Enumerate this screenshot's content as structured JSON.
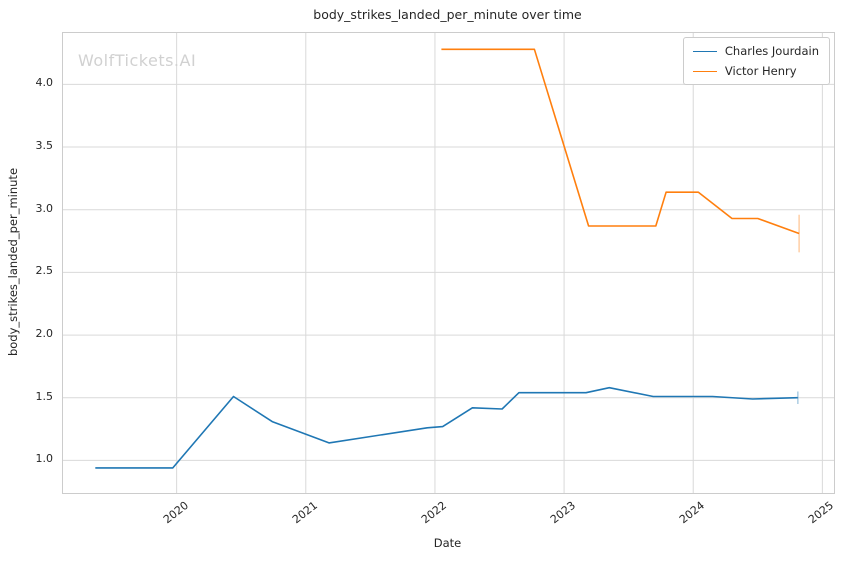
{
  "title": "body_strikes_landed_per_minute over time",
  "watermark": "WolfTickets.AI",
  "chart_data": {
    "type": "line",
    "title": "body_strikes_landed_per_minute over time",
    "xlabel": "Date",
    "ylabel": "body_strikes_landed_per_minute",
    "grid": true,
    "legend_position": "upper right",
    "xlim": [
      2019.12,
      2025.09
    ],
    "ylim": [
      0.74,
      4.41
    ],
    "x_ticks": [
      2020,
      2021,
      2022,
      2023,
      2024,
      2025
    ],
    "y_ticks": [
      "1.0",
      "1.5",
      "2.0",
      "2.5",
      "3.0",
      "3.5",
      "4.0"
    ],
    "grid_color": "#d9d9d9",
    "spine_color": "#cccccc",
    "series": [
      {
        "name": "Charles Jourdain",
        "color": "#1f77b4",
        "error_color": "rgba(31,119,180,0.35)",
        "x": [
          2019.37,
          2019.97,
          2020.44,
          2020.74,
          2021.18,
          2021.94,
          2022.06,
          2022.29,
          2022.52,
          2022.65,
          2023.17,
          2023.35,
          2023.69,
          2024.15,
          2024.46,
          2024.81
        ],
        "y": [
          0.94,
          0.94,
          1.51,
          1.31,
          1.14,
          1.26,
          1.27,
          1.42,
          1.41,
          1.54,
          1.54,
          1.58,
          1.51,
          1.51,
          1.49,
          1.5
        ],
        "final_point_error": {
          "x": 2024.81,
          "y": 1.5,
          "plus": 0.05,
          "minus": 0.05
        }
      },
      {
        "name": "Victor Henry",
        "color": "#ff7f0e",
        "error_color": "rgba(255,127,14,0.35)",
        "x": [
          2022.05,
          2022.77,
          2023.19,
          2023.71,
          2023.79,
          2024.04,
          2024.3,
          2024.5,
          2024.82
        ],
        "y": [
          4.28,
          4.28,
          2.87,
          2.87,
          3.14,
          3.14,
          2.93,
          2.93,
          2.81
        ],
        "final_point_error": {
          "x": 2024.82,
          "y": 2.81,
          "plus": 0.15,
          "minus": 0.15
        }
      }
    ]
  }
}
